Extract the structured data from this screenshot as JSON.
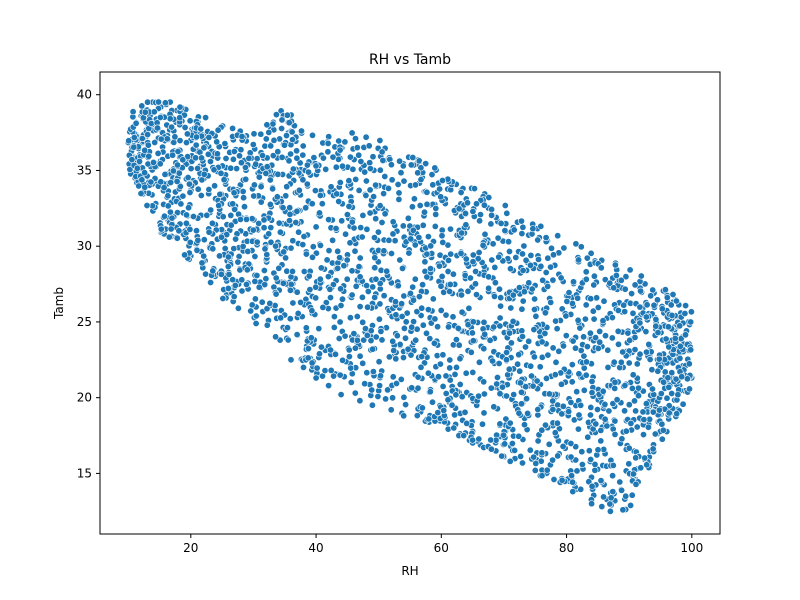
{
  "chart_data": {
    "type": "scatter",
    "title": "RH vs Tamb",
    "xlabel": "RH",
    "ylabel": "Tamb",
    "xlim": [
      5.5,
      104.5
    ],
    "ylim": [
      11.0,
      41.5
    ],
    "xticks": [
      "20",
      "40",
      "60",
      "80",
      "100"
    ],
    "xtick_values": [
      20,
      40,
      60,
      80,
      100
    ],
    "yticks": [
      "15",
      "20",
      "25",
      "30",
      "35",
      "40"
    ],
    "ytick_values": [
      15,
      20,
      25,
      30,
      35,
      40
    ],
    "grid": false,
    "marker_color": "#1f77b4",
    "marker_edge_color": "#ffffff",
    "series": [
      {
        "envelope_upper": [
          [
            10,
            39.0
          ],
          [
            13,
            39.5
          ],
          [
            17,
            39.8
          ],
          [
            20,
            39.0
          ],
          [
            25,
            38.0
          ],
          [
            30,
            37.5
          ],
          [
            35,
            39.2
          ],
          [
            40,
            37.5
          ],
          [
            48,
            37.5
          ],
          [
            55,
            36.0
          ],
          [
            65,
            34.0
          ],
          [
            75,
            31.5
          ],
          [
            85,
            29.5
          ],
          [
            95,
            27.5
          ],
          [
            100,
            26.0
          ]
        ],
        "envelope_lower": [
          [
            10,
            35.0
          ],
          [
            12,
            33.5
          ],
          [
            15,
            31.0
          ],
          [
            20,
            29.0
          ],
          [
            25,
            26.5
          ],
          [
            30,
            25.0
          ],
          [
            35,
            23.5
          ],
          [
            40,
            21.5
          ],
          [
            50,
            19.5
          ],
          [
            60,
            18.0
          ],
          [
            70,
            16.0
          ],
          [
            80,
            14.0
          ],
          [
            85,
            12.5
          ],
          [
            90,
            12.5
          ],
          [
            95,
            17.0
          ],
          [
            100,
            20.5
          ]
        ],
        "outlier_points": [
          [
            36,
            22.5
          ],
          [
            38,
            22.0
          ],
          [
            40,
            21.3
          ],
          [
            42,
            20.8
          ],
          [
            44,
            20.2
          ],
          [
            47,
            19.8
          ],
          [
            49,
            19.5
          ],
          [
            52,
            19.2
          ],
          [
            54,
            18.8
          ],
          [
            58,
            18.6
          ],
          [
            62,
            18.0
          ],
          [
            65,
            17.2
          ],
          [
            68,
            16.6
          ],
          [
            71,
            15.8
          ],
          [
            75,
            15.2
          ],
          [
            78,
            14.6
          ],
          [
            81,
            13.8
          ],
          [
            84,
            13.0
          ],
          [
            87,
            12.5
          ],
          [
            89,
            12.6
          ]
        ]
      }
    ]
  }
}
